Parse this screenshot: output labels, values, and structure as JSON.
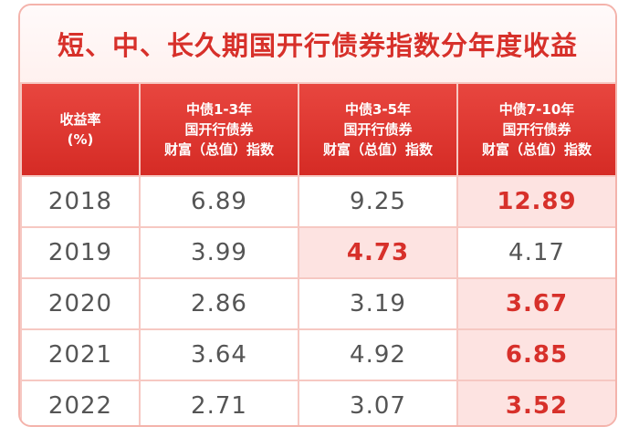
{
  "title": "短、中、长久期国开行债券指数分年度收益",
  "colors": {
    "accent": "#d7302a",
    "header_bg": "#e0362f",
    "highlight_bg": "#fde3e1"
  },
  "headers": [
    [
      "收益率",
      "(%)"
    ],
    [
      "中债1-3年",
      "国开行债券",
      "财富（总值）指数"
    ],
    [
      "中债3-5年",
      "国开行债券",
      "财富（总值）指数"
    ],
    [
      "中债7-10年",
      "国开行债券",
      "财富（总值）指数"
    ]
  ],
  "rows": [
    {
      "year": "2018",
      "v1": "6.89",
      "v2": "9.25",
      "v3": "12.89"
    },
    {
      "year": "2019",
      "v1": "3.99",
      "v2": "4.73",
      "v3": "4.17"
    },
    {
      "year": "2020",
      "v1": "2.86",
      "v2": "3.19",
      "v3": "3.67"
    },
    {
      "year": "2021",
      "v1": "3.64",
      "v2": "4.92",
      "v3": "6.85"
    },
    {
      "year": "2022",
      "v1": "2.71",
      "v2": "3.07",
      "v3": "3.52"
    }
  ],
  "highlighted": [
    {
      "row": 0,
      "col": 3
    },
    {
      "row": 1,
      "col": 2
    },
    {
      "row": 2,
      "col": 3
    },
    {
      "row": 3,
      "col": 3
    },
    {
      "row": 4,
      "col": 3
    }
  ],
  "chart_data": {
    "type": "table",
    "title": "短、中、长久期国开行债券指数分年度收益",
    "columns": [
      "收益率(%)",
      "中债1-3年国开行债券财富（总值）指数",
      "中债3-5年国开行债券财富（总值）指数",
      "中债7-10年国开行债券财富（总值）指数"
    ],
    "categories": [
      "2018",
      "2019",
      "2020",
      "2021",
      "2022"
    ],
    "series": [
      {
        "name": "中债1-3年国开行债券财富（总值）指数",
        "values": [
          6.89,
          3.99,
          2.86,
          3.64,
          2.71
        ]
      },
      {
        "name": "中债3-5年国开行债券财富（总值）指数",
        "values": [
          9.25,
          4.73,
          3.19,
          4.92,
          3.07
        ]
      },
      {
        "name": "中债7-10年国开行债券财富（总值）指数",
        "values": [
          12.89,
          4.17,
          3.67,
          6.85,
          3.52
        ]
      }
    ]
  }
}
